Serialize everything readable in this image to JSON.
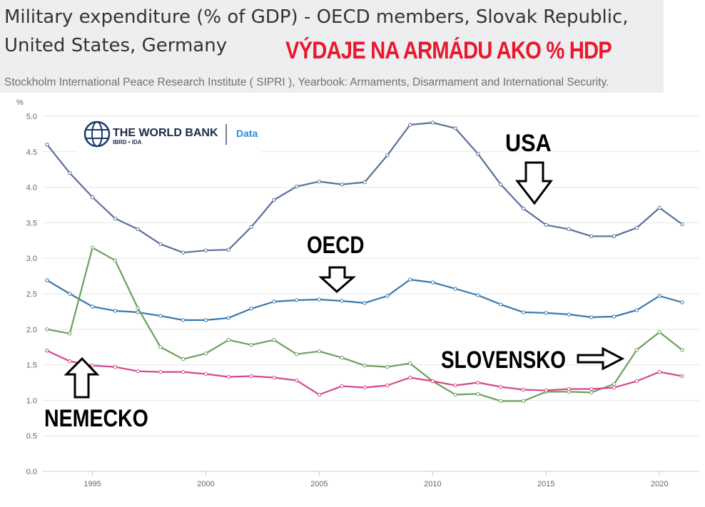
{
  "header": {
    "title": "Military expenditure (% of GDP) - OECD members, Slovak Republic, United States, Germany",
    "headline": "VÝDAJE NA ARMÁDU AKO % HDP",
    "source": "Stockholm International Peace Research Institute ( SIPRI ), Yearbook: Armaments, Disarmament and International Security."
  },
  "logo": {
    "brand": "THE WORLD BANK",
    "sub": "IBRD • IDA",
    "product": "Data"
  },
  "callouts": {
    "usa": "USA",
    "oecd": "OECD",
    "slovensko": "SLOVENSKO",
    "nemecko": "NEMECKO"
  },
  "chart_data": {
    "type": "line",
    "ylabel": "%",
    "ylim": [
      0,
      5
    ],
    "yticks": [
      0.0,
      0.5,
      1.0,
      1.5,
      2.0,
      2.5,
      3.0,
      3.5,
      4.0,
      4.5,
      5.0
    ],
    "ytick_labels": [
      "0.0",
      "0.5",
      "1.0",
      "1.5",
      "2.0",
      "2.5",
      "3.0",
      "3.5",
      "4.0",
      "4.5",
      "5.0"
    ],
    "xlim": [
      1993,
      2021
    ],
    "xticks": [
      1995,
      2000,
      2005,
      2010,
      2015,
      2020
    ],
    "xtick_labels": [
      "1995",
      "2000",
      "2005",
      "2010",
      "2015",
      "2020"
    ],
    "grid": "horizontal",
    "x": [
      1993,
      1994,
      1995,
      1996,
      1997,
      1998,
      1999,
      2000,
      2001,
      2002,
      2003,
      2004,
      2005,
      2006,
      2007,
      2008,
      2009,
      2010,
      2011,
      2012,
      2013,
      2014,
      2015,
      2016,
      2017,
      2018,
      2019,
      2020,
      2021
    ],
    "series": [
      {
        "id": "usa",
        "color": "#5b6f9b",
        "values": [
          4.6,
          4.2,
          3.86,
          3.56,
          3.41,
          3.2,
          3.08,
          3.11,
          3.12,
          3.44,
          3.82,
          4.01,
          4.08,
          4.04,
          4.07,
          4.45,
          4.88,
          4.91,
          4.83,
          4.47,
          4.04,
          3.7,
          3.47,
          3.41,
          3.31,
          3.31,
          3.43,
          3.71,
          3.48
        ]
      },
      {
        "id": "oecd",
        "color": "#3778ad",
        "values": [
          2.69,
          2.5,
          2.32,
          2.26,
          2.24,
          2.19,
          2.13,
          2.13,
          2.16,
          2.29,
          2.39,
          2.41,
          2.42,
          2.4,
          2.37,
          2.47,
          2.7,
          2.66,
          2.57,
          2.48,
          2.35,
          2.24,
          2.23,
          2.21,
          2.17,
          2.18,
          2.27,
          2.47,
          2.38
        ]
      },
      {
        "id": "slovak-republic",
        "color": "#6ba05c",
        "values": [
          2.0,
          1.94,
          3.15,
          2.97,
          2.3,
          1.75,
          1.58,
          1.66,
          1.85,
          1.78,
          1.85,
          1.65,
          1.69,
          1.6,
          1.49,
          1.47,
          1.52,
          1.27,
          1.08,
          1.09,
          0.99,
          0.99,
          1.12,
          1.12,
          1.11,
          1.23,
          1.71,
          1.96,
          1.71
        ]
      },
      {
        "id": "germany",
        "color": "#d5478d",
        "values": [
          1.7,
          1.55,
          1.49,
          1.47,
          1.41,
          1.4,
          1.4,
          1.37,
          1.33,
          1.34,
          1.32,
          1.28,
          1.08,
          1.2,
          1.18,
          1.21,
          1.32,
          1.27,
          1.21,
          1.25,
          1.19,
          1.15,
          1.14,
          1.16,
          1.16,
          1.18,
          1.27,
          1.4,
          1.34
        ]
      }
    ]
  }
}
